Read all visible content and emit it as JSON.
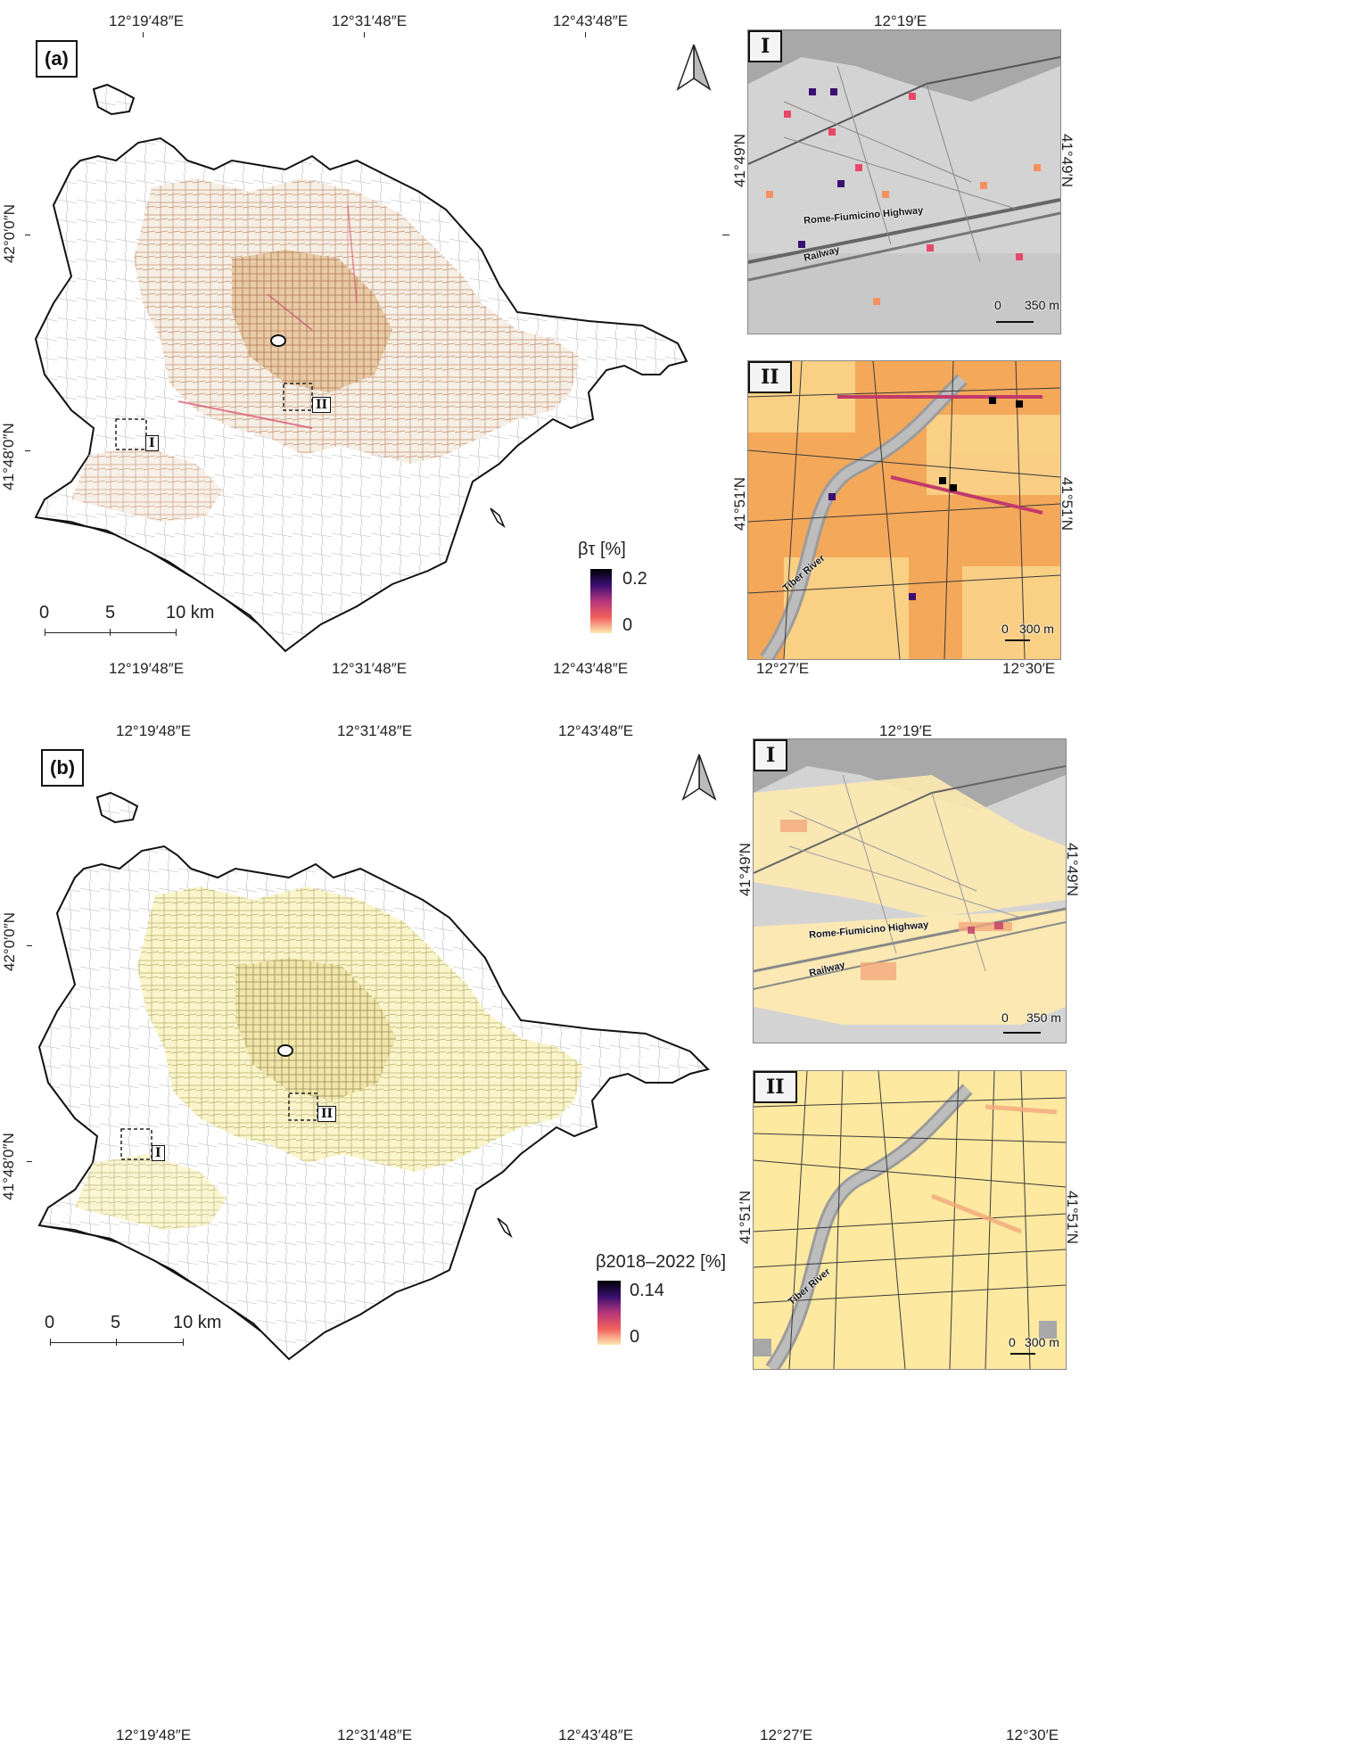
{
  "panels": [
    {
      "id": "a",
      "label": "(a)",
      "coords_top": [
        "12°19′48″E",
        "12°31′48″E",
        "12°43′48″E"
      ],
      "coords_bottom": [
        "12°19′48″E",
        "12°31′48″E",
        "12°43′48″E"
      ],
      "coords_left": [
        "42°0′0″N",
        "41°48′0″N"
      ],
      "legend": {
        "title": "βτ [%]",
        "max": "0.2",
        "min": "0"
      },
      "scale": {
        "t0": "0",
        "t5": "5",
        "t10": "10 km"
      },
      "inset_markers": [
        "I",
        "II"
      ],
      "insets": [
        {
          "tag": "I",
          "top_coord": "12°19′E",
          "left_coord": "41°49′N",
          "right_coord": "41°49′N",
          "labels": {
            "highway": "Rome-Fiumicino Highway",
            "railway": "Railway"
          },
          "scale_zero": "0",
          "scale_len": "350 m"
        },
        {
          "tag": "II",
          "bottom_left": "12°27′E",
          "bottom_right": "12°30′E",
          "left_coord": "41°51′N",
          "right_coord": "41°51′N",
          "labels": {
            "river": "Tiber River"
          },
          "scale_zero": "0",
          "scale_len": "300 m"
        }
      ]
    },
    {
      "id": "b",
      "label": "(b)",
      "coords_top": [
        "12°19′48″E",
        "12°31′48″E",
        "12°43′48″E"
      ],
      "coords_bottom": [
        "12°19′48″E",
        "12°31′48″E",
        "12°43′48″E"
      ],
      "coords_left": [
        "42°0′0″N",
        "41°48′0″N"
      ],
      "legend": {
        "title": "β2018–2022 [%]",
        "max": "0.14",
        "min": "0"
      },
      "scale": {
        "t0": "0",
        "t5": "5",
        "t10": "10 km"
      },
      "inset_markers": [
        "I",
        "II"
      ],
      "insets": [
        {
          "tag": "I",
          "top_coord": "12°19′E",
          "left_coord": "41°49′N",
          "right_coord": "41°49′N",
          "labels": {
            "highway": "Rome-Fiumicino Highway",
            "railway": "Railway"
          },
          "scale_zero": "0",
          "scale_len": "350 m"
        },
        {
          "tag": "II",
          "bottom_left": "12°27′E",
          "bottom_right": "12°30′E",
          "left_coord": "41°51′N",
          "right_coord": "41°51′N",
          "labels": {
            "river": "Tiber River"
          },
          "scale_zero": "0",
          "scale_len": "300 m"
        }
      ]
    }
  ],
  "colors": {
    "ramp_high": "#000004",
    "ramp_mid": "#b5367a",
    "ramp_low": "#fde9b0",
    "inset_gray": "#cfcfcf",
    "road": "#444444"
  },
  "north_arrow_icon": "north-arrow-icon"
}
